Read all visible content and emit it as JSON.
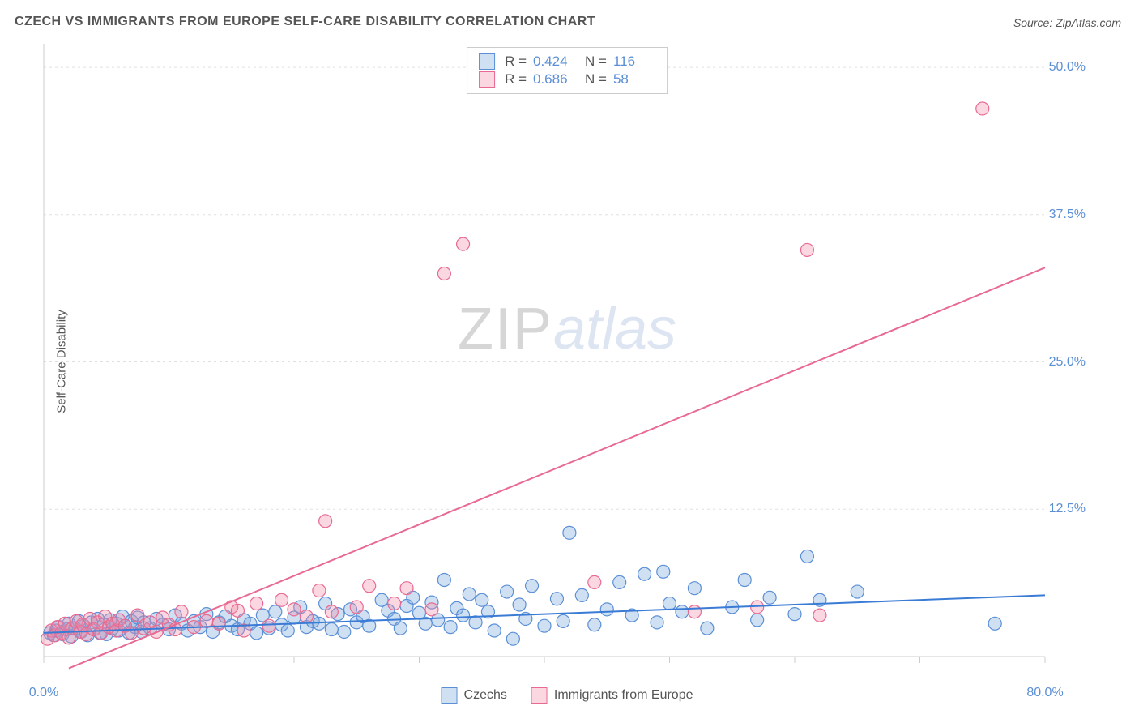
{
  "title": "CZECH VS IMMIGRANTS FROM EUROPE SELF-CARE DISABILITY CORRELATION CHART",
  "source_label": "Source:",
  "source_value": "ZipAtlas.com",
  "y_axis_label": "Self-Care Disability",
  "watermark_a": "ZIP",
  "watermark_b": "atlas",
  "chart": {
    "type": "scatter",
    "xlim": [
      0,
      80
    ],
    "ylim": [
      0,
      52
    ],
    "x_ticks": [
      0,
      10,
      20,
      30,
      40,
      50,
      60,
      70,
      80
    ],
    "x_tick_labels": {
      "0": "0.0%",
      "80": "80.0%"
    },
    "y_ticks": [
      12.5,
      25.0,
      37.5,
      50.0
    ],
    "y_tick_labels": [
      "12.5%",
      "25.0%",
      "37.5%",
      "50.0%"
    ],
    "grid_color": "#e0e0e0",
    "axis_color": "#cccccc",
    "background": "#ffffff",
    "marker_radius": 8,
    "marker_stroke_width": 1.2,
    "line_width": 2,
    "series": [
      {
        "name": "Czechs",
        "color_fill": "rgba(120,165,220,0.35)",
        "color_stroke": "#5b8fd6",
        "line_color": "#3a7bd5",
        "R": "0.424",
        "N": "116",
        "trend": {
          "x1": 0,
          "y1": 2.0,
          "x2": 80,
          "y2": 5.2
        },
        "points": [
          [
            0.5,
            2.0
          ],
          [
            0.8,
            1.8
          ],
          [
            1.0,
            2.2
          ],
          [
            1.2,
            2.5
          ],
          [
            1.5,
            1.9
          ],
          [
            1.8,
            2.3
          ],
          [
            2.0,
            2.8
          ],
          [
            2.2,
            1.7
          ],
          [
            2.5,
            2.4
          ],
          [
            2.8,
            3.0
          ],
          [
            3.0,
            2.1
          ],
          [
            3.2,
            2.6
          ],
          [
            3.5,
            1.8
          ],
          [
            3.8,
            2.9
          ],
          [
            4.0,
            2.3
          ],
          [
            4.3,
            3.2
          ],
          [
            4.5,
            2.0
          ],
          [
            4.8,
            2.7
          ],
          [
            5.0,
            1.9
          ],
          [
            5.3,
            3.1
          ],
          [
            5.5,
            2.4
          ],
          [
            5.8,
            2.8
          ],
          [
            6.0,
            2.2
          ],
          [
            6.3,
            3.4
          ],
          [
            6.5,
            2.6
          ],
          [
            6.8,
            2.0
          ],
          [
            7.0,
            3.0
          ],
          [
            7.3,
            2.5
          ],
          [
            7.5,
            3.3
          ],
          [
            7.8,
            2.1
          ],
          [
            8.0,
            2.9
          ],
          [
            8.5,
            2.4
          ],
          [
            9.0,
            3.2
          ],
          [
            9.5,
            2.7
          ],
          [
            10.0,
            2.3
          ],
          [
            10.5,
            3.5
          ],
          [
            11.0,
            2.8
          ],
          [
            11.5,
            2.2
          ],
          [
            12.0,
            3.0
          ],
          [
            12.5,
            2.5
          ],
          [
            13.0,
            3.6
          ],
          [
            13.5,
            2.1
          ],
          [
            14.0,
            2.9
          ],
          [
            14.5,
            3.4
          ],
          [
            15.0,
            2.6
          ],
          [
            15.5,
            2.3
          ],
          [
            16.0,
            3.1
          ],
          [
            16.5,
            2.8
          ],
          [
            17.0,
            2.0
          ],
          [
            17.5,
            3.5
          ],
          [
            18.0,
            2.4
          ],
          [
            18.5,
            3.8
          ],
          [
            19.0,
            2.7
          ],
          [
            19.5,
            2.2
          ],
          [
            20.0,
            3.3
          ],
          [
            20.5,
            4.2
          ],
          [
            21.0,
            2.5
          ],
          [
            21.5,
            3.0
          ],
          [
            22.0,
            2.8
          ],
          [
            22.5,
            4.5
          ],
          [
            23.0,
            2.3
          ],
          [
            23.5,
            3.6
          ],
          [
            24.0,
            2.1
          ],
          [
            24.5,
            4.0
          ],
          [
            25.0,
            2.9
          ],
          [
            25.5,
            3.4
          ],
          [
            26.0,
            2.6
          ],
          [
            27.0,
            4.8
          ],
          [
            27.5,
            3.9
          ],
          [
            28.0,
            3.2
          ],
          [
            28.5,
            2.4
          ],
          [
            29.0,
            4.3
          ],
          [
            29.5,
            5.0
          ],
          [
            30.0,
            3.7
          ],
          [
            30.5,
            2.8
          ],
          [
            31.0,
            4.6
          ],
          [
            31.5,
            3.1
          ],
          [
            32.0,
            6.5
          ],
          [
            32.5,
            2.5
          ],
          [
            33.0,
            4.1
          ],
          [
            33.5,
            3.5
          ],
          [
            34.0,
            5.3
          ],
          [
            34.5,
            2.9
          ],
          [
            35.0,
            4.8
          ],
          [
            35.5,
            3.8
          ],
          [
            36.0,
            2.2
          ],
          [
            37.0,
            5.5
          ],
          [
            37.5,
            1.5
          ],
          [
            38.0,
            4.4
          ],
          [
            38.5,
            3.2
          ],
          [
            39.0,
            6.0
          ],
          [
            40.0,
            2.6
          ],
          [
            41.0,
            4.9
          ],
          [
            41.5,
            3.0
          ],
          [
            42.0,
            10.5
          ],
          [
            43.0,
            5.2
          ],
          [
            44.0,
            2.7
          ],
          [
            45.0,
            4.0
          ],
          [
            46.0,
            6.3
          ],
          [
            47.0,
            3.5
          ],
          [
            48.0,
            7.0
          ],
          [
            49.0,
            2.9
          ],
          [
            49.5,
            7.2
          ],
          [
            50.0,
            4.5
          ],
          [
            51.0,
            3.8
          ],
          [
            52.0,
            5.8
          ],
          [
            53.0,
            2.4
          ],
          [
            55.0,
            4.2
          ],
          [
            56.0,
            6.5
          ],
          [
            57.0,
            3.1
          ],
          [
            58.0,
            5.0
          ],
          [
            60.0,
            3.6
          ],
          [
            61.0,
            8.5
          ],
          [
            62.0,
            4.8
          ],
          [
            65.0,
            5.5
          ],
          [
            76.0,
            2.8
          ]
        ]
      },
      {
        "name": "Immigrants from Europe",
        "color_fill": "rgba(240,140,170,0.35)",
        "color_stroke": "#e86a92",
        "line_color": "#e86a92",
        "R": "0.686",
        "N": "58",
        "trend": {
          "x1": 2,
          "y1": -1.0,
          "x2": 80,
          "y2": 33.0
        },
        "points": [
          [
            0.3,
            1.5
          ],
          [
            0.6,
            2.2
          ],
          [
            0.9,
            1.8
          ],
          [
            1.1,
            2.5
          ],
          [
            1.4,
            2.0
          ],
          [
            1.7,
            2.8
          ],
          [
            2.0,
            1.6
          ],
          [
            2.3,
            2.4
          ],
          [
            2.6,
            3.0
          ],
          [
            2.9,
            2.1
          ],
          [
            3.1,
            2.7
          ],
          [
            3.4,
            1.9
          ],
          [
            3.7,
            3.2
          ],
          [
            4.0,
            2.3
          ],
          [
            4.3,
            2.9
          ],
          [
            4.6,
            2.0
          ],
          [
            4.9,
            3.4
          ],
          [
            5.2,
            2.5
          ],
          [
            5.5,
            2.8
          ],
          [
            5.8,
            2.2
          ],
          [
            6.0,
            3.1
          ],
          [
            6.5,
            2.6
          ],
          [
            7.0,
            2.0
          ],
          [
            7.5,
            3.5
          ],
          [
            8.0,
            2.4
          ],
          [
            8.5,
            2.9
          ],
          [
            9.0,
            2.1
          ],
          [
            9.5,
            3.3
          ],
          [
            10.0,
            2.7
          ],
          [
            10.5,
            2.3
          ],
          [
            11.0,
            3.8
          ],
          [
            12.0,
            2.5
          ],
          [
            13.0,
            3.0
          ],
          [
            14.0,
            2.8
          ],
          [
            15.0,
            4.2
          ],
          [
            15.5,
            3.9
          ],
          [
            16.0,
            2.2
          ],
          [
            17.0,
            4.5
          ],
          [
            18.0,
            2.6
          ],
          [
            19.0,
            4.8
          ],
          [
            20.0,
            4.0
          ],
          [
            21.0,
            3.4
          ],
          [
            22.0,
            5.6
          ],
          [
            22.5,
            11.5
          ],
          [
            23.0,
            3.8
          ],
          [
            25.0,
            4.2
          ],
          [
            26.0,
            6.0
          ],
          [
            28.0,
            4.5
          ],
          [
            29.0,
            5.8
          ],
          [
            31.0,
            4.0
          ],
          [
            32.0,
            32.5
          ],
          [
            33.5,
            35.0
          ],
          [
            44.0,
            6.3
          ],
          [
            52.0,
            3.8
          ],
          [
            57.0,
            4.2
          ],
          [
            61.0,
            34.5
          ],
          [
            62.0,
            3.5
          ],
          [
            75.0,
            46.5
          ]
        ]
      }
    ],
    "stats_box": {
      "R_label": "R =",
      "N_label": "N ="
    },
    "bottom_legend": [
      "Czechs",
      "Immigrants from Europe"
    ]
  }
}
